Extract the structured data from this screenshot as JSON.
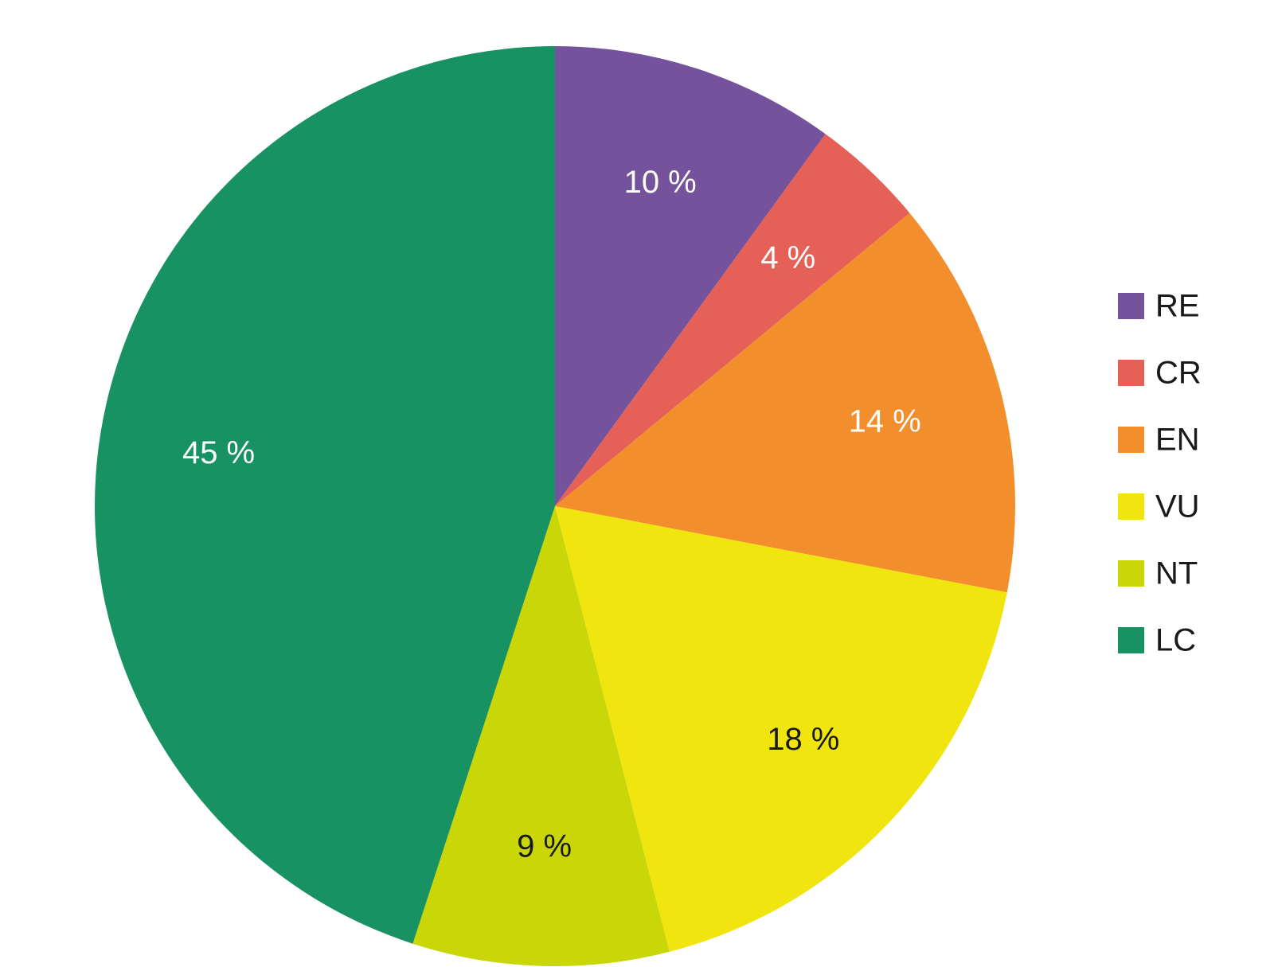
{
  "chart_data": {
    "type": "pie",
    "start_angle_deg": 0,
    "direction": "clockwise",
    "legend_position": "right",
    "title": "",
    "slices": [
      {
        "category": "RE",
        "value": 10,
        "label": "10 %",
        "color": "#74529c",
        "label_color": "#ffffff"
      },
      {
        "category": "CR",
        "value": 4,
        "label": "4 %",
        "color": "#e56157",
        "label_color": "#ffffff"
      },
      {
        "category": "EN",
        "value": 14,
        "label": "14 %",
        "color": "#f28f2c",
        "label_color": "#ffffff"
      },
      {
        "category": "VU",
        "value": 18,
        "label": "18 %",
        "color": "#f1e50f",
        "label_color": "#1a1a1a"
      },
      {
        "category": "NT",
        "value": 9,
        "label": "9 %",
        "color": "#c9d607",
        "label_color": "#1a1a1a"
      },
      {
        "category": "LC",
        "value": 45,
        "label": "45 %",
        "color": "#189262",
        "label_color": "#ffffff"
      }
    ]
  }
}
